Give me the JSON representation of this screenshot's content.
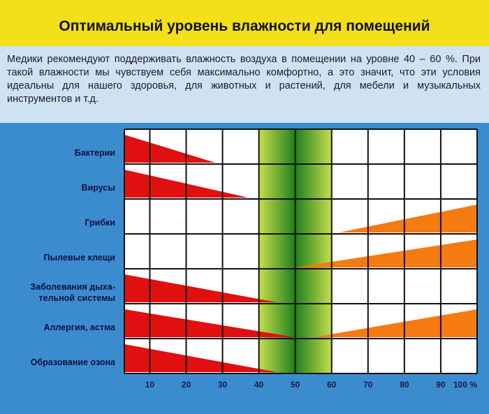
{
  "chart_data": {
    "type": "wedge",
    "title": "Оптимальный уровень влажности для помещений",
    "subtitle": "Медики рекомендуют поддерживать влажность воздуха в помещении на уровне 40 – 60 %. При такой влажности мы чувствуем себя максимально комфортно, а это значит, что эти условия идеальны для нашего здоровья, для животных и растений, для мебели и музыкальных инструментов и т.д.",
    "categories": [
      "Бактерии",
      "Вирусы",
      "Грибки",
      "Пылевые клещи",
      "Заболевания дыха-\nтельной системы",
      "Аллергия, астма",
      "Образование озона"
    ],
    "decreasing_until": [
      28,
      37,
      null,
      null,
      45,
      50,
      45
    ],
    "increasing_from": [
      null,
      null,
      62,
      50,
      null,
      55,
      null
    ],
    "optimal_range": [
      40,
      60
    ],
    "decreasing_color": "#e01010",
    "increasing_color": "#f57a10",
    "xlim": [
      3,
      100
    ],
    "xticks": [
      10,
      20,
      30,
      40,
      50,
      60,
      70,
      80,
      90,
      {
        "value": 100,
        "label": "100 %"
      }
    ],
    "grid": true
  }
}
